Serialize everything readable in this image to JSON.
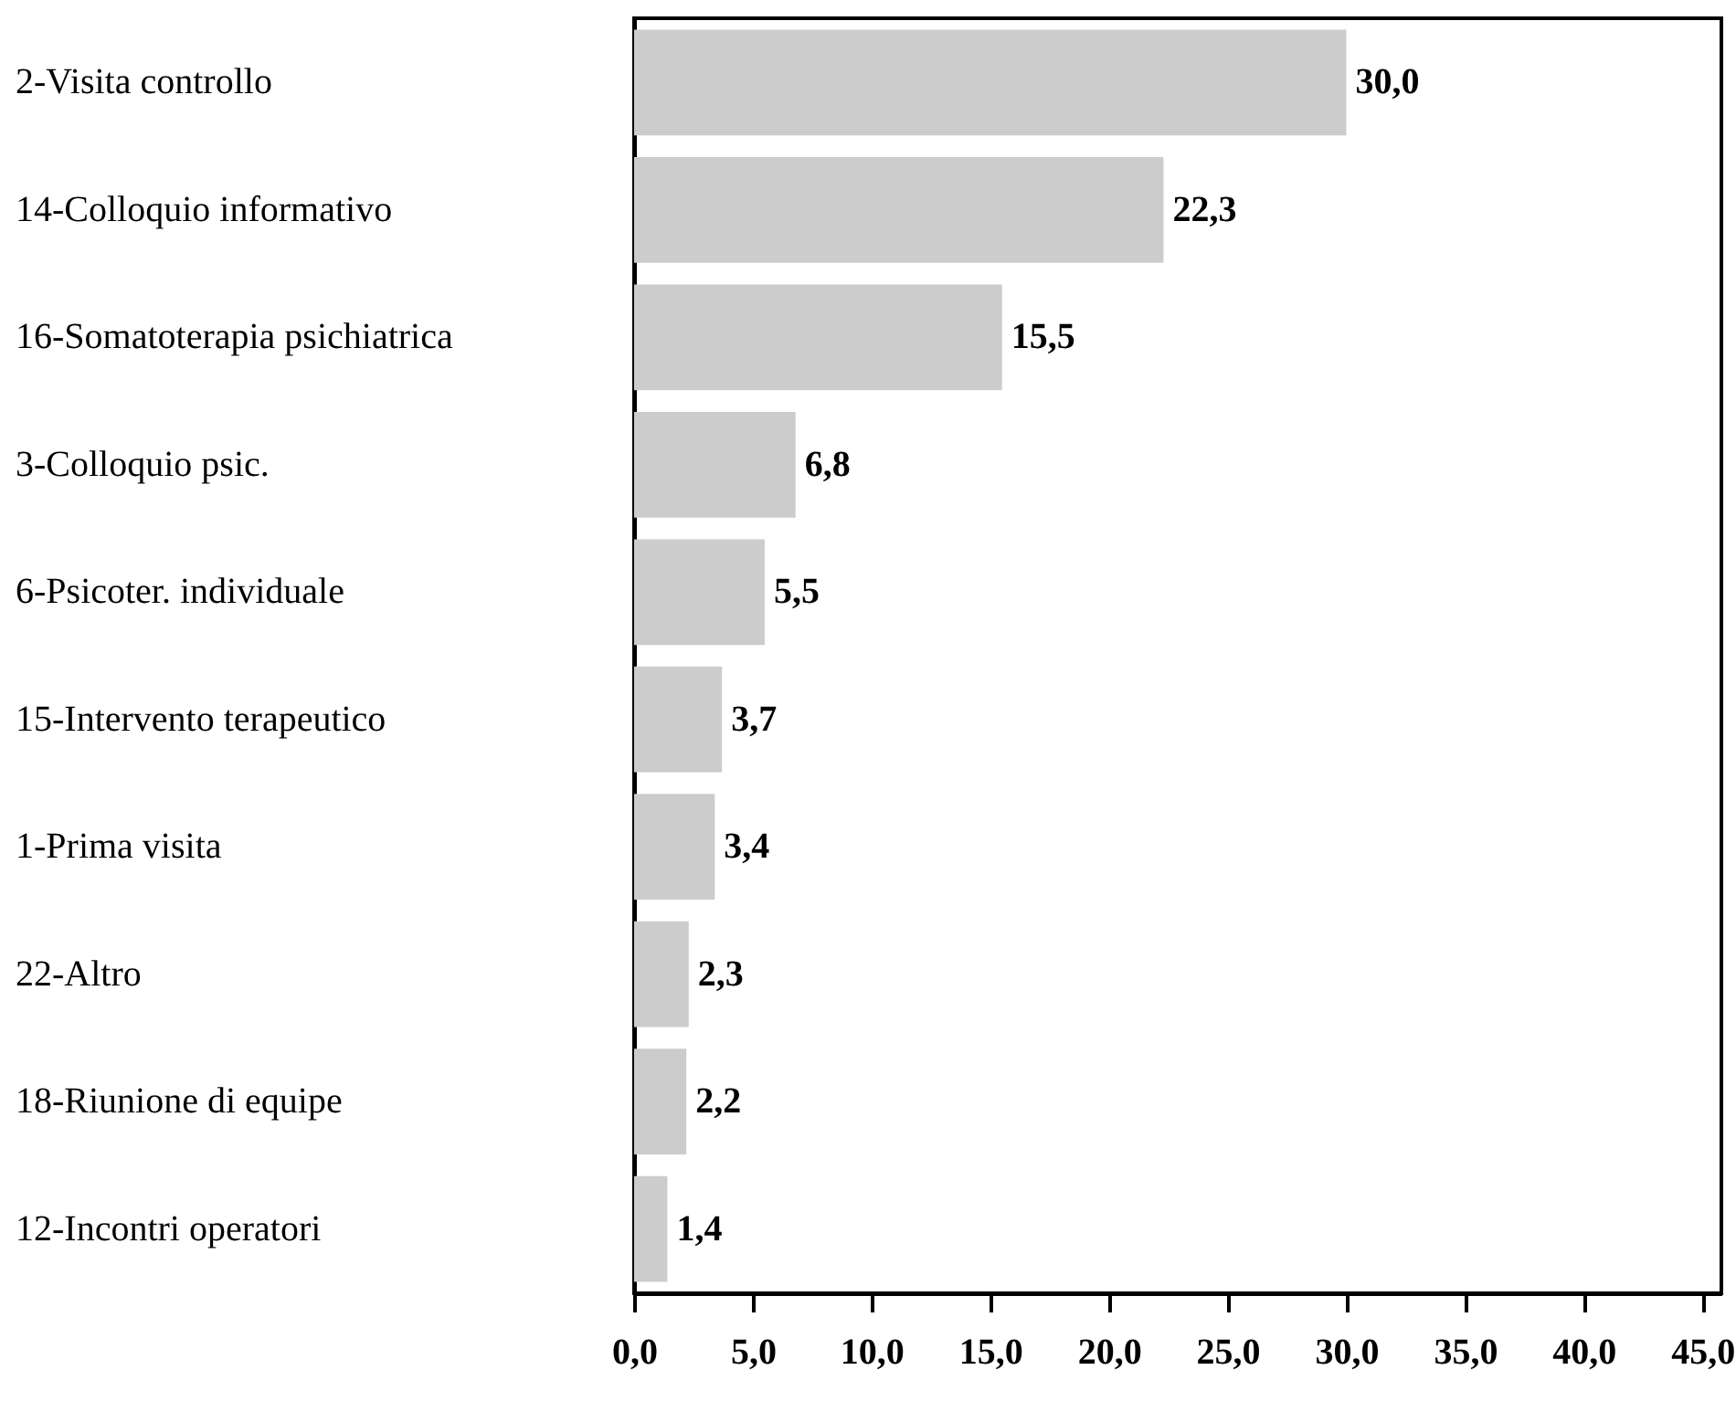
{
  "chart_data": {
    "type": "bar",
    "orientation": "horizontal",
    "categories": [
      "2-Visita controllo",
      "14-Colloquio informativo",
      "16-Somatoterapia psichiatrica",
      "3-Colloquio psic.",
      "6-Psicoter. individuale",
      "15-Intervento terapeutico",
      "1-Prima visita",
      "22-Altro",
      "18-Riunione di equipe",
      "12-Incontri operatori"
    ],
    "values": [
      30.0,
      22.3,
      15.5,
      6.8,
      5.5,
      3.7,
      3.4,
      2.3,
      2.2,
      1.4
    ],
    "value_labels": [
      "30,0",
      "22,3",
      "15,5",
      "6,8",
      "5,5",
      "3,7",
      "3,4",
      "2,3",
      "2,2",
      "1,4"
    ],
    "color": "#cccccc",
    "xlim": [
      0,
      45.8
    ],
    "xticks": [
      {
        "value": 0,
        "label": "0,0"
      },
      {
        "value": 5,
        "label": "5,0"
      },
      {
        "value": 10,
        "label": "10,0"
      },
      {
        "value": 15,
        "label": "15,0"
      },
      {
        "value": 20,
        "label": "20,0"
      },
      {
        "value": 25,
        "label": "25,0"
      },
      {
        "value": 30,
        "label": "30,0"
      },
      {
        "value": 35,
        "label": "35,0"
      },
      {
        "value": 40,
        "label": "40,0"
      },
      {
        "value": 45,
        "label": "45,0"
      }
    ],
    "grid": false
  }
}
